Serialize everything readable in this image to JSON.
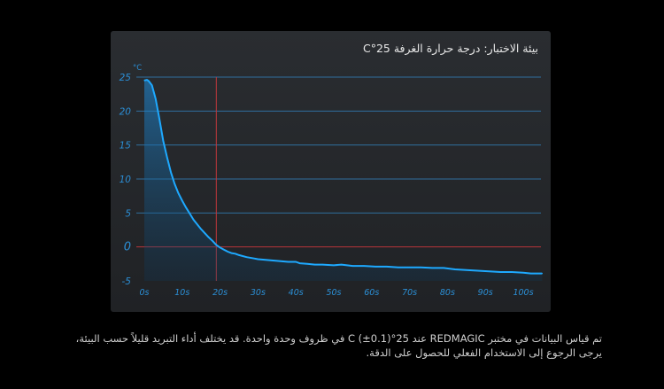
{
  "panel": {
    "title": "بيئة الاختبار: درجة حرارة الغرفة 25°C"
  },
  "caption": "تم قياس البيانات في مختبر REDMAGIC عند 25°C (±0.1) في ظروف وحدة واحدة. قد يختلف أداء التبريد قليلاً حسب البيئة، يرجى الرجوع إلى الاستخدام الفعلي للحصول على الدقة.",
  "colors": {
    "line": "#1ea9ff",
    "grid": "#2f6f9e",
    "zero_line": "#b7353a",
    "marker": "#c0383c",
    "tick": "#2b8fd6"
  },
  "chart_data": {
    "type": "area",
    "title": "",
    "ylabel": "°C",
    "xlabel": "",
    "ylim": [
      -5,
      25
    ],
    "xlim": [
      0,
      105
    ],
    "xticks": [
      0,
      10,
      20,
      30,
      40,
      50,
      60,
      70,
      80,
      90,
      100
    ],
    "xtick_labels": [
      "0s",
      "10s",
      "20s",
      "30s",
      "40s",
      "50s",
      "60s",
      "70s",
      "80s",
      "90s",
      "100s"
    ],
    "yticks": [
      25,
      20,
      15,
      10,
      5,
      0,
      -5
    ],
    "ytick_labels": [
      "25",
      "20",
      "15",
      "10",
      "5",
      "0",
      "-5"
    ],
    "zero_line": 0,
    "marker_x": 19,
    "grid": true,
    "series": [
      {
        "x": [
          0,
          0.7,
          1.2,
          2,
          3,
          4,
          5,
          6,
          7,
          8,
          9,
          10,
          11,
          12,
          13,
          14,
          15,
          16,
          17,
          18,
          19,
          20,
          21,
          22,
          23,
          24,
          25,
          27,
          29,
          30,
          32,
          34,
          36,
          38,
          40,
          41,
          43,
          45,
          47,
          50,
          52,
          55,
          58,
          61,
          64,
          67,
          70,
          73,
          76,
          79,
          82,
          85,
          88,
          91,
          94,
          97,
          100,
          102,
          105
        ],
        "y": [
          24.5,
          24.6,
          24.4,
          23.8,
          21.8,
          18.8,
          15.6,
          13.2,
          11.0,
          9.3,
          7.9,
          6.8,
          5.8,
          4.9,
          4.0,
          3.3,
          2.6,
          2.0,
          1.4,
          0.9,
          0.3,
          -0.1,
          -0.4,
          -0.7,
          -0.9,
          -1.0,
          -1.2,
          -1.5,
          -1.7,
          -1.8,
          -1.9,
          -2.0,
          -2.1,
          -2.2,
          -2.2,
          -2.4,
          -2.5,
          -2.6,
          -2.6,
          -2.7,
          -2.6,
          -2.8,
          -2.8,
          -2.9,
          -2.9,
          -3.0,
          -3.0,
          -3.0,
          -3.1,
          -3.1,
          -3.3,
          -3.4,
          -3.5,
          -3.6,
          -3.7,
          -3.7,
          -3.8,
          -3.9,
          -3.9
        ]
      }
    ]
  }
}
